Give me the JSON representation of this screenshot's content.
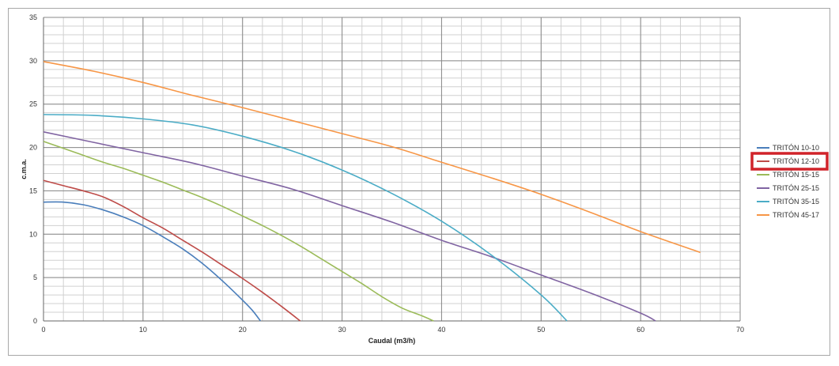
{
  "chart_data": {
    "type": "line",
    "title": "",
    "xlabel": "Caudal (m3/h)",
    "ylabel": "c.m.a.",
    "xlim": [
      0,
      70
    ],
    "ylim": [
      0,
      35
    ],
    "x_ticks": [
      "0",
      "10",
      "20",
      "30",
      "40",
      "50",
      "60",
      "70"
    ],
    "y_ticks": [
      "0",
      "5",
      "10",
      "15",
      "20",
      "25",
      "30",
      "35"
    ],
    "grid": true,
    "legend_position": "right",
    "highlighted_series": "TRITÓN 12-10",
    "series": [
      {
        "name": "TRITÓN 10-10",
        "color": "#4a7ebb",
        "points": [
          [
            0,
            13.7
          ],
          [
            2,
            13.7
          ],
          [
            4,
            13.4
          ],
          [
            6,
            12.8
          ],
          [
            8,
            12.0
          ],
          [
            10,
            11.0
          ],
          [
            12,
            9.7
          ],
          [
            14,
            8.3
          ],
          [
            16,
            6.6
          ],
          [
            18,
            4.6
          ],
          [
            20,
            2.4
          ],
          [
            21,
            1.2
          ],
          [
            21.8,
            0
          ]
        ]
      },
      {
        "name": "TRITÓN 12-10",
        "color": "#be4b48",
        "points": [
          [
            0,
            16.2
          ],
          [
            2,
            15.6
          ],
          [
            4,
            15.0
          ],
          [
            6,
            14.3
          ],
          [
            8,
            13.2
          ],
          [
            10,
            11.9
          ],
          [
            12,
            10.7
          ],
          [
            14,
            9.3
          ],
          [
            16,
            7.9
          ],
          [
            18,
            6.4
          ],
          [
            20,
            4.9
          ],
          [
            22,
            3.3
          ],
          [
            24,
            1.6
          ],
          [
            25.8,
            0
          ]
        ]
      },
      {
        "name": "TRITÓN 15-15",
        "color": "#9bbb59",
        "points": [
          [
            0,
            20.7
          ],
          [
            2,
            19.9
          ],
          [
            4,
            19.1
          ],
          [
            6,
            18.3
          ],
          [
            8,
            17.6
          ],
          [
            10,
            16.8
          ],
          [
            12,
            16.0
          ],
          [
            14,
            15.1
          ],
          [
            16,
            14.2
          ],
          [
            18,
            13.2
          ],
          [
            20,
            12.1
          ],
          [
            22,
            11.0
          ],
          [
            24,
            9.8
          ],
          [
            26,
            8.5
          ],
          [
            28,
            7.1
          ],
          [
            30,
            5.7
          ],
          [
            32,
            4.3
          ],
          [
            34,
            2.8
          ],
          [
            36,
            1.5
          ],
          [
            38,
            0.6
          ],
          [
            39.2,
            0
          ]
        ]
      },
      {
        "name": "TRITÓN 25-15",
        "color": "#8064a2",
        "points": [
          [
            0,
            21.8
          ],
          [
            5,
            20.6
          ],
          [
            10,
            19.4
          ],
          [
            15,
            18.2
          ],
          [
            20,
            16.7
          ],
          [
            25,
            15.2
          ],
          [
            30,
            13.3
          ],
          [
            35,
            11.4
          ],
          [
            40,
            9.3
          ],
          [
            45,
            7.4
          ],
          [
            50,
            5.3
          ],
          [
            55,
            3.2
          ],
          [
            60,
            0.9
          ],
          [
            61.5,
            0
          ]
        ]
      },
      {
        "name": "TRITÓN 35-15",
        "color": "#4bacc6",
        "points": [
          [
            0,
            23.8
          ],
          [
            5,
            23.7
          ],
          [
            10,
            23.3
          ],
          [
            15,
            22.6
          ],
          [
            20,
            21.3
          ],
          [
            25,
            19.6
          ],
          [
            30,
            17.4
          ],
          [
            35,
            14.7
          ],
          [
            40,
            11.5
          ],
          [
            45,
            7.6
          ],
          [
            50,
            3.0
          ],
          [
            52.6,
            0
          ]
        ]
      },
      {
        "name": "TRITÓN 45-17",
        "color": "#f79646",
        "points": [
          [
            0,
            29.9
          ],
          [
            5,
            28.8
          ],
          [
            10,
            27.5
          ],
          [
            15,
            26.0
          ],
          [
            20,
            24.6
          ],
          [
            25,
            23.1
          ],
          [
            30,
            21.6
          ],
          [
            35,
            20.1
          ],
          [
            40,
            18.3
          ],
          [
            45,
            16.5
          ],
          [
            50,
            14.6
          ],
          [
            55,
            12.5
          ],
          [
            60,
            10.3
          ],
          [
            66,
            7.9
          ]
        ]
      }
    ]
  }
}
